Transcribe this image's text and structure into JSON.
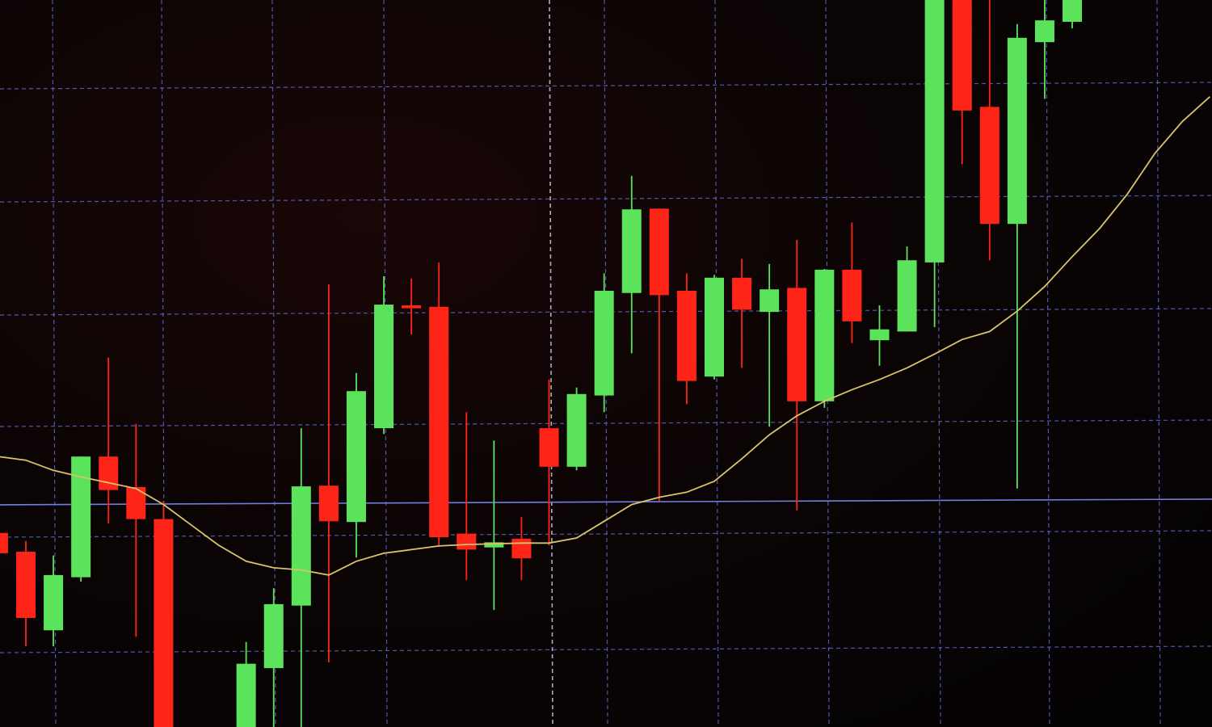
{
  "chart_data": {
    "type": "candlestick",
    "title": "",
    "xlabel": "",
    "ylabel": "",
    "ylim": [
      0,
      100
    ],
    "xlim": [
      1,
      45
    ],
    "grid": true,
    "legend": "none",
    "colors": {
      "up": "#5be35b",
      "down": "#ff2418",
      "moving_average": "#d9c46a",
      "grid": "#5a68c8",
      "level_line": "#6f7fe0",
      "background": "#0a0404"
    },
    "horizontal_line": 30.9,
    "candles": [
      {
        "t": 1,
        "open": 26.7,
        "high": 27.2,
        "low": 23.3,
        "close": 23.9
      },
      {
        "t": 2,
        "open": 24.1,
        "high": 25.6,
        "low": 11.1,
        "close": 15.0
      },
      {
        "t": 3,
        "open": 13.3,
        "high": 23.6,
        "low": 11.1,
        "close": 20.9
      },
      {
        "t": 4,
        "open": 20.6,
        "high": 37.2,
        "low": 20.0,
        "close": 37.2
      },
      {
        "t": 5,
        "open": 37.2,
        "high": 50.8,
        "low": 28.0,
        "close": 32.6
      },
      {
        "t": 6,
        "open": 33.0,
        "high": 41.7,
        "low": 12.4,
        "close": 28.6
      },
      {
        "t": 7,
        "open": 28.6,
        "high": 31.1,
        "low": -8,
        "close": -5
      },
      {
        "t": 10,
        "open": -5,
        "high": 11.7,
        "low": -8,
        "close": 8.7
      },
      {
        "t": 11,
        "open": 8.1,
        "high": 19.1,
        "low": -8,
        "close": 16.9
      },
      {
        "t": 12,
        "open": 16.7,
        "high": 41.1,
        "low": -8,
        "close": 33.1
      },
      {
        "t": 13,
        "open": 33.2,
        "high": 60.9,
        "low": 8.9,
        "close": 28.3
      },
      {
        "t": 14,
        "open": 28.2,
        "high": 48.7,
        "low": 23.3,
        "close": 46.2
      },
      {
        "t": 15,
        "open": 41.1,
        "high": 62.0,
        "low": 40.3,
        "close": 58.1
      },
      {
        "t": 16,
        "open": 58.0,
        "high": 61.7,
        "low": 54.0,
        "close": 57.6
      },
      {
        "t": 17,
        "open": 57.8,
        "high": 63.9,
        "low": 25.0,
        "close": 26.1
      },
      {
        "t": 18,
        "open": 26.6,
        "high": 43.3,
        "low": 20.2,
        "close": 24.4
      },
      {
        "t": 19,
        "open": 24.7,
        "high": 39.4,
        "low": 16.1,
        "close": 25.4
      },
      {
        "t": 20,
        "open": 25.9,
        "high": 28.9,
        "low": 20.2,
        "close": 23.2
      },
      {
        "t": 21,
        "open": 41.1,
        "high": 47.8,
        "low": 25.0,
        "close": 35.8
      },
      {
        "t": 22,
        "open": 35.8,
        "high": 46.7,
        "low": 35.3,
        "close": 45.8
      },
      {
        "t": 23,
        "open": 45.6,
        "high": 62.4,
        "low": 43.3,
        "close": 60.0
      },
      {
        "t": 24,
        "open": 59.7,
        "high": 75.8,
        "low": 51.4,
        "close": 71.2
      },
      {
        "t": 25,
        "open": 71.3,
        "high": 71.3,
        "low": 31.1,
        "close": 59.4
      },
      {
        "t": 26,
        "open": 60.0,
        "high": 62.4,
        "low": 44.4,
        "close": 47.6
      },
      {
        "t": 27,
        "open": 48.2,
        "high": 62.2,
        "low": 47.8,
        "close": 61.8
      },
      {
        "t": 28,
        "open": 61.8,
        "high": 64.4,
        "low": 49.4,
        "close": 57.4
      },
      {
        "t": 29,
        "open": 57.1,
        "high": 63.7,
        "low": 41.3,
        "close": 60.2
      },
      {
        "t": 30,
        "open": 60.4,
        "high": 67.0,
        "low": 29.8,
        "close": 44.8
      },
      {
        "t": 31,
        "open": 44.8,
        "high": 63.0,
        "low": 43.9,
        "close": 62.9
      },
      {
        "t": 32,
        "open": 62.9,
        "high": 69.4,
        "low": 52.8,
        "close": 55.8
      },
      {
        "t": 33,
        "open": 53.2,
        "high": 58.0,
        "low": 49.7,
        "close": 54.7
      },
      {
        "t": 34,
        "open": 54.4,
        "high": 66.1,
        "low": 54.4,
        "close": 64.2
      },
      {
        "t": 35,
        "open": 63.9,
        "high": 105,
        "low": 55.0,
        "close": 104
      },
      {
        "t": 36,
        "open": 104,
        "high": 105,
        "low": 77.4,
        "close": 84.8
      },
      {
        "t": 37,
        "open": 85.3,
        "high": 105,
        "low": 64.2,
        "close": 69.2
      },
      {
        "t": 38,
        "open": 69.2,
        "high": 96.7,
        "low": 32.8,
        "close": 94.8
      },
      {
        "t": 39,
        "open": 94.2,
        "high": 105,
        "low": 86.4,
        "close": 97.2
      },
      {
        "t": 40,
        "open": 97.0,
        "high": 105,
        "low": 96.1,
        "close": 104
      }
    ],
    "moving_average": [
      37.2,
      36.7,
      35.3,
      34.4,
      33.6,
      32.8,
      30.6,
      27.8,
      25.0,
      22.8,
      21.9,
      21.6,
      20.9,
      22.8,
      23.9,
      24.4,
      24.9,
      25.1,
      25.2,
      25.3,
      25.3,
      26.0,
      28.3,
      30.6,
      31.6,
      32.3,
      33.8,
      36.9,
      40.2,
      42.8,
      44.8,
      46.4,
      47.8,
      49.4,
      51.3,
      53.3,
      54.4,
      57.2,
      60.6,
      64.7,
      68.6,
      73.3,
      78.9,
      83.3,
      86.7
    ]
  }
}
